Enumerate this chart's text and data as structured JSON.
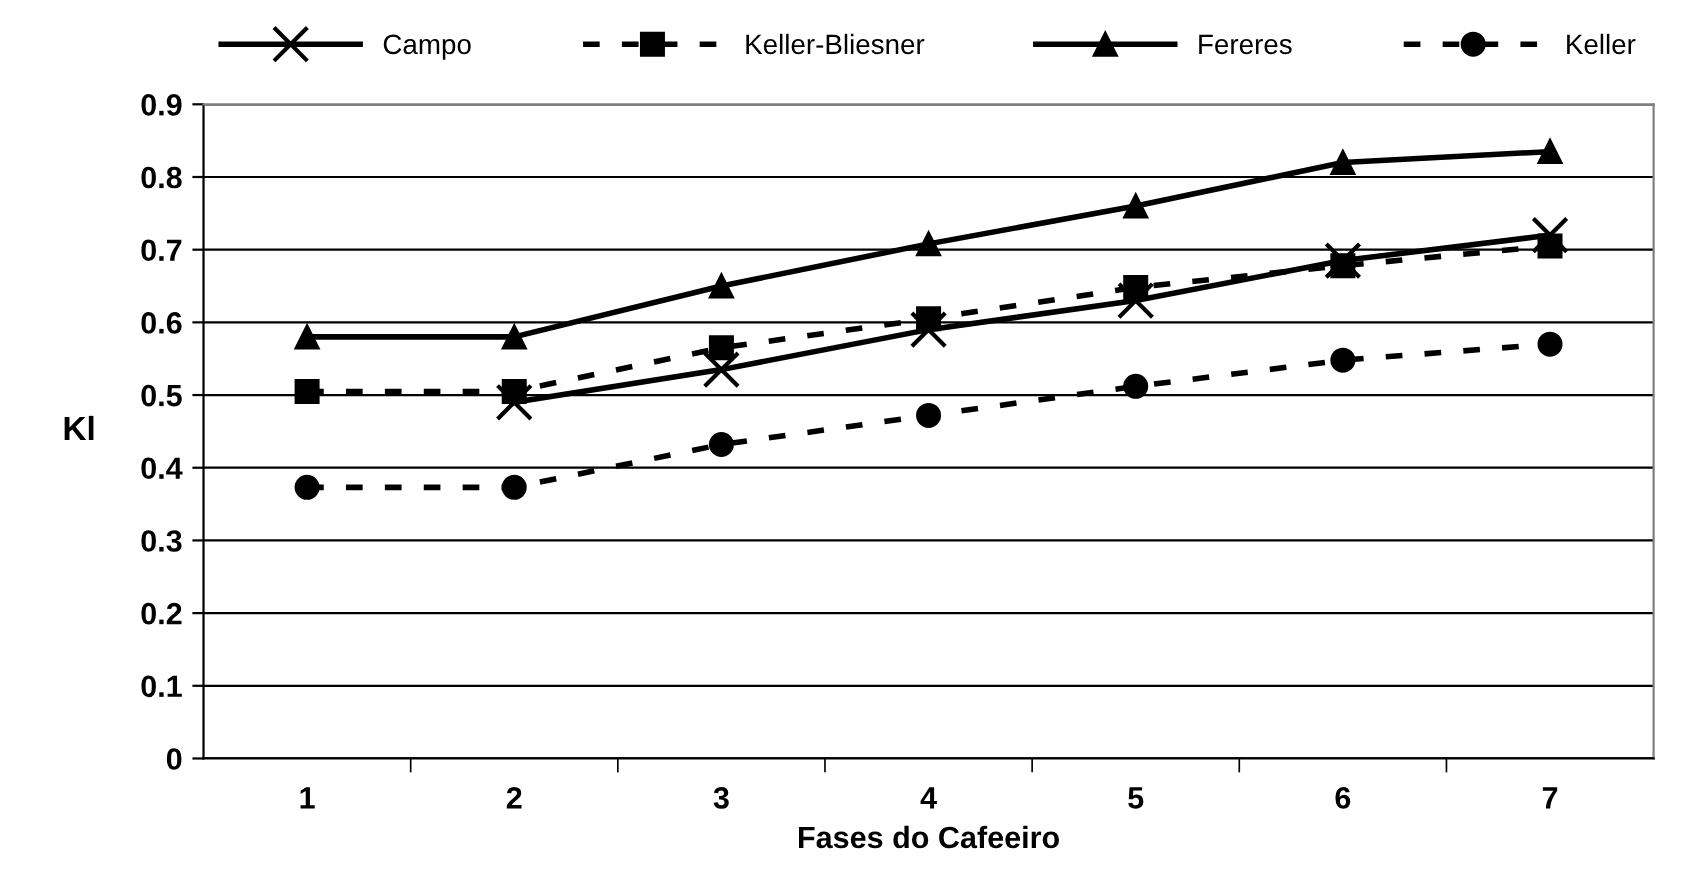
{
  "chart_data": {
    "type": "line",
    "xlabel": "Fases do Cafeeiro",
    "ylabel": "Kl",
    "categories": [
      "1",
      "2",
      "3",
      "4",
      "5",
      "6",
      "7"
    ],
    "series": [
      {
        "name": "Campo",
        "color": "#000000",
        "marker": "cross",
        "line_style": "solid",
        "values": [
          null,
          0.49,
          0.535,
          0.59,
          0.63,
          0.685,
          0.72
        ]
      },
      {
        "name": "Keller-Bliesner",
        "color": "#000000",
        "marker": "square",
        "line_style": "dashed",
        "values": [
          0.505,
          0.505,
          0.565,
          0.605,
          0.648,
          0.678,
          0.705
        ]
      },
      {
        "name": "Fereres",
        "color": "#000000",
        "marker": "triangle",
        "line_style": "solid",
        "values": [
          0.58,
          0.58,
          0.65,
          0.708,
          0.76,
          0.82,
          0.835
        ]
      },
      {
        "name": "Keller",
        "color": "#000000",
        "marker": "circle",
        "line_style": "dashed",
        "values": [
          0.373,
          0.373,
          0.432,
          0.472,
          0.512,
          0.548,
          0.57
        ]
      }
    ],
    "ylim": [
      0,
      0.9
    ],
    "yticks": [
      0,
      0.1,
      0.2,
      0.3,
      0.4,
      0.5,
      0.6,
      0.7,
      0.8,
      0.9
    ],
    "grid": "y",
    "legend": "top"
  }
}
